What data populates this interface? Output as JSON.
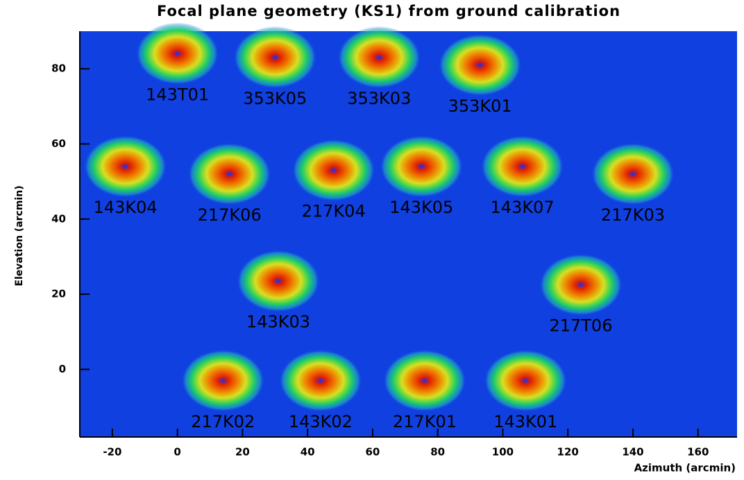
{
  "chart_data": {
    "type": "scatter",
    "title": "Focal plane geometry (KS1) from ground calibration",
    "x_label": "Azimuth (arcmin)",
    "y_label": "Elevation (arcmin)",
    "xlim": [
      -30,
      172
    ],
    "ylim": [
      -18,
      90
    ],
    "xticks": [
      -20,
      0,
      20,
      40,
      60,
      80,
      100,
      120,
      140,
      160
    ],
    "yticks": [
      0,
      20,
      40,
      60,
      80
    ],
    "detectors": [
      {
        "label": "143T01",
        "x": 0,
        "y": 84
      },
      {
        "label": "353K05",
        "x": 30,
        "y": 83
      },
      {
        "label": "353K03",
        "x": 62,
        "y": 83
      },
      {
        "label": "353K01",
        "x": 93,
        "y": 81
      },
      {
        "label": "143K04",
        "x": -16,
        "y": 54
      },
      {
        "label": "217K06",
        "x": 16,
        "y": 52
      },
      {
        "label": "217K04",
        "x": 48,
        "y": 53
      },
      {
        "label": "143K05",
        "x": 75,
        "y": 54
      },
      {
        "label": "143K07",
        "x": 106,
        "y": 54
      },
      {
        "label": "217K03",
        "x": 140,
        "y": 52
      },
      {
        "label": "143K03",
        "x": 31,
        "y": 23.5
      },
      {
        "label": "217T06",
        "x": 124,
        "y": 22.5
      },
      {
        "label": "217K02",
        "x": 14,
        "y": -3
      },
      {
        "label": "143K02",
        "x": 44,
        "y": -3
      },
      {
        "label": "217K01",
        "x": 76,
        "y": -3
      },
      {
        "label": "143K01",
        "x": 107,
        "y": -3
      }
    ]
  }
}
